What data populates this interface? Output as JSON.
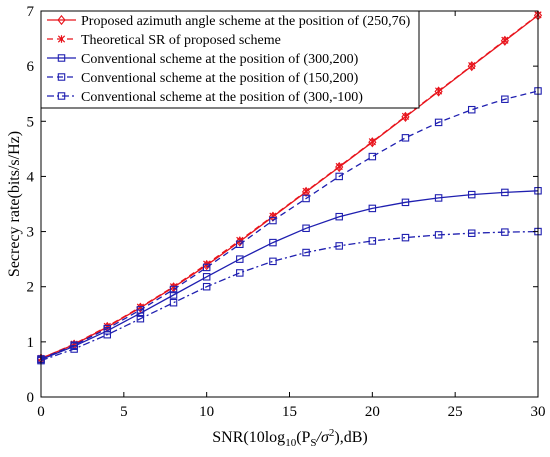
{
  "chart_data": {
    "type": "line",
    "xlabel": "SNR(10log",
    "xlabel_sub": "10",
    "xlabel_mid": "(P",
    "xlabel_sub2": "S",
    "xlabel_tail": "/σ",
    "xlabel_sup": "2",
    "xlabel_end": "),dB)",
    "ylabel": "Secrecy rate(bits/s/Hz)",
    "xlim": [
      0,
      30
    ],
    "ylim": [
      0,
      7
    ],
    "x_ticks": [
      0,
      5,
      10,
      15,
      20,
      25,
      30
    ],
    "y_ticks": [
      0,
      1,
      2,
      3,
      4,
      5,
      6,
      7
    ],
    "grid": false,
    "legend_position": "top-left",
    "x": [
      0,
      2,
      4,
      6,
      8,
      10,
      12,
      14,
      16,
      18,
      20,
      22,
      24,
      26,
      28,
      30
    ],
    "series": [
      {
        "name": "Proposed azimuth angle scheme at the position of (250,76)",
        "color": "#e8141c",
        "dash": "solid",
        "marker": "diamond",
        "marker_x": [
          0,
          2,
          4,
          6,
          8,
          10,
          12,
          14,
          16,
          18,
          20,
          22,
          24,
          26,
          28,
          30
        ],
        "values": [
          0.7,
          0.95,
          1.27,
          1.62,
          1.99,
          2.39,
          2.82,
          3.27,
          3.72,
          4.17,
          4.62,
          5.08,
          5.54,
          6.0,
          6.46,
          6.92
        ]
      },
      {
        "name": "Theoretical SR of proposed scheme",
        "color": "#e8141c",
        "dash": "dashed",
        "marker": "star",
        "marker_x": [
          0,
          2,
          4,
          6,
          8,
          10,
          12,
          14,
          16,
          18,
          20,
          22,
          24,
          26,
          28,
          30
        ],
        "values": [
          0.7,
          0.96,
          1.28,
          1.63,
          2.0,
          2.41,
          2.84,
          3.28,
          3.73,
          4.18,
          4.63,
          5.09,
          5.55,
          6.01,
          6.47,
          6.93
        ]
      },
      {
        "name": "Conventional scheme at the position of (300,200)",
        "color": "#1f1fb0",
        "dash": "solid",
        "marker": "square",
        "marker_x": [
          0,
          2,
          4,
          6,
          8,
          10,
          12,
          14,
          16,
          18,
          20,
          22,
          24,
          26,
          28,
          30
        ],
        "values": [
          0.68,
          0.92,
          1.2,
          1.52,
          1.85,
          2.18,
          2.5,
          2.8,
          3.06,
          3.27,
          3.42,
          3.53,
          3.61,
          3.67,
          3.71,
          3.74
        ]
      },
      {
        "name": "Conventional scheme at the position of (150,200)",
        "color": "#1f1fb0",
        "dash": "dashed",
        "marker": "square",
        "marker_x": [
          0,
          2,
          4,
          6,
          8,
          10,
          12,
          14,
          16,
          18,
          20,
          22,
          24,
          26,
          28,
          30
        ],
        "values": [
          0.69,
          0.94,
          1.24,
          1.58,
          1.95,
          2.35,
          2.77,
          3.2,
          3.6,
          4.0,
          4.36,
          4.7,
          4.98,
          5.21,
          5.4,
          5.55
        ]
      },
      {
        "name": "Conventional scheme at the position of (300,-100)",
        "color": "#1f1fb0",
        "dash": "dashdot",
        "marker": "square",
        "marker_x": [
          0,
          2,
          4,
          6,
          8,
          10,
          12,
          14,
          16,
          18,
          20,
          22,
          24,
          26,
          28,
          30
        ],
        "values": [
          0.66,
          0.87,
          1.13,
          1.42,
          1.71,
          2.0,
          2.25,
          2.46,
          2.62,
          2.74,
          2.83,
          2.89,
          2.94,
          2.97,
          2.99,
          3.0
        ]
      }
    ]
  }
}
